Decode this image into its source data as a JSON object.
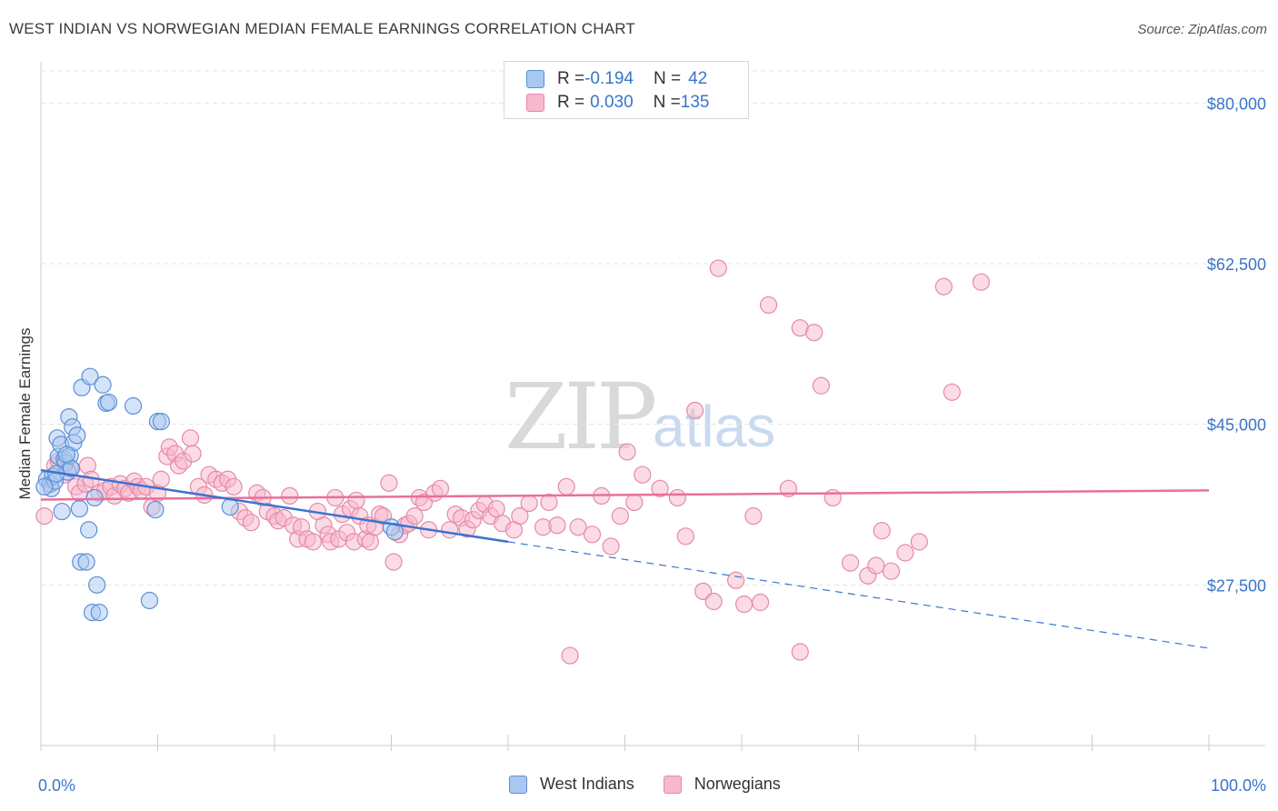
{
  "title": "WEST INDIAN VS NORWEGIAN MEDIAN FEMALE EARNINGS CORRELATION CHART",
  "source": "Source: ZipAtlas.com",
  "watermark": {
    "main": "ZIP",
    "sub": "atlas"
  },
  "colors": {
    "west_indians_fill": "#a9c8f0",
    "west_indians_stroke": "#5b8fd6",
    "west_indians_line": "#3a74d0",
    "norwegians_fill": "#f7b8cc",
    "norwegians_stroke": "#e58aa8",
    "norwegians_line": "#e8709a",
    "axis_label": "#3a74c9",
    "grid": "#e4e4e4"
  },
  "legend": {
    "rows": [
      {
        "r_label": "R = ",
        "r_value": "-0.194",
        "n_label": "N = ",
        "n_value": "42"
      },
      {
        "r_label": "R = ",
        "r_value": "0.030",
        "n_label": "N = ",
        "n_value": "135"
      }
    ]
  },
  "bottom_legend": {
    "west_indians": "West Indians",
    "norwegians": "Norwegians"
  },
  "chart_data": {
    "type": "scatter",
    "xlabel": "",
    "ylabel": "Median Female Earnings",
    "xlim": [
      0,
      100
    ],
    "ylim": [
      10000,
      83500
    ],
    "x_tick_labels": {
      "left": "0.0%",
      "right": "100.0%"
    },
    "y_ticks": [
      {
        "value": 80000,
        "label": "$80,000"
      },
      {
        "value": 62500,
        "label": "$62,500"
      },
      {
        "value": 45000,
        "label": "$45,000"
      },
      {
        "value": 27500,
        "label": "$27,500"
      }
    ],
    "series": [
      {
        "name": "West Indians",
        "trend": {
          "x0": 0,
          "y0": 40000,
          "x1": 40,
          "y1": 32200,
          "dash_to_x": 100,
          "dash_to_y": 20600
        },
        "points": [
          [
            0.5,
            39000
          ],
          [
            0.8,
            38500
          ],
          [
            0.9,
            38000
          ],
          [
            1.0,
            39300
          ],
          [
            1.2,
            38800
          ],
          [
            1.4,
            43500
          ],
          [
            1.5,
            41500
          ],
          [
            1.7,
            42800
          ],
          [
            1.8,
            35500
          ],
          [
            2.0,
            41200
          ],
          [
            2.1,
            40800
          ],
          [
            2.3,
            39800
          ],
          [
            2.5,
            41600
          ],
          [
            2.6,
            40200
          ],
          [
            2.4,
            45800
          ],
          [
            2.7,
            44700
          ],
          [
            2.8,
            43000
          ],
          [
            3.1,
            43800
          ],
          [
            3.3,
            35800
          ],
          [
            3.4,
            30000
          ],
          [
            3.5,
            49000
          ],
          [
            3.9,
            30000
          ],
          [
            4.2,
            50200
          ],
          [
            4.1,
            33500
          ],
          [
            4.4,
            24500
          ],
          [
            4.6,
            37000
          ],
          [
            4.8,
            27500
          ],
          [
            5.0,
            24500
          ],
          [
            5.3,
            49300
          ],
          [
            5.6,
            47300
          ],
          [
            5.8,
            47400
          ],
          [
            7.9,
            47000
          ],
          [
            9.3,
            25800
          ],
          [
            9.8,
            35700
          ],
          [
            10.0,
            45300
          ],
          [
            10.3,
            45300
          ],
          [
            16.2,
            36000
          ],
          [
            30.0,
            33800
          ],
          [
            30.3,
            33300
          ],
          [
            0.3,
            38200
          ],
          [
            1.3,
            39600
          ],
          [
            2.2,
            41700
          ]
        ]
      },
      {
        "name": "Norwegians",
        "trend": {
          "x0": 0,
          "y0": 36800,
          "x1": 100,
          "y1": 37800
        },
        "points": [
          [
            0.3,
            35000
          ],
          [
            1.2,
            40500
          ],
          [
            1.5,
            41000
          ],
          [
            2.0,
            39500
          ],
          [
            2.5,
            40200
          ],
          [
            3.0,
            38200
          ],
          [
            3.3,
            37500
          ],
          [
            3.8,
            38500
          ],
          [
            4.0,
            40500
          ],
          [
            4.3,
            39000
          ],
          [
            5.0,
            37500
          ],
          [
            5.5,
            37800
          ],
          [
            6.0,
            38200
          ],
          [
            6.3,
            37200
          ],
          [
            6.8,
            38500
          ],
          [
            7.2,
            38000
          ],
          [
            7.5,
            37500
          ],
          [
            8.0,
            38800
          ],
          [
            8.3,
            38200
          ],
          [
            8.6,
            37800
          ],
          [
            9.0,
            38200
          ],
          [
            9.5,
            36000
          ],
          [
            10.0,
            37500
          ],
          [
            10.3,
            39000
          ],
          [
            10.8,
            41500
          ],
          [
            11.0,
            42500
          ],
          [
            11.5,
            41800
          ],
          [
            11.8,
            40500
          ],
          [
            12.2,
            41000
          ],
          [
            12.8,
            43500
          ],
          [
            13.0,
            41800
          ],
          [
            13.5,
            38200
          ],
          [
            14.0,
            37300
          ],
          [
            14.4,
            39500
          ],
          [
            15.0,
            39000
          ],
          [
            15.5,
            38600
          ],
          [
            16.0,
            39000
          ],
          [
            16.5,
            38200
          ],
          [
            17.0,
            35500
          ],
          [
            17.5,
            34800
          ],
          [
            18.0,
            34300
          ],
          [
            18.5,
            37500
          ],
          [
            19.0,
            37000
          ],
          [
            19.4,
            35500
          ],
          [
            20.0,
            35000
          ],
          [
            20.3,
            34500
          ],
          [
            20.8,
            34800
          ],
          [
            21.3,
            37200
          ],
          [
            21.6,
            34000
          ],
          [
            22.0,
            32500
          ],
          [
            22.3,
            33800
          ],
          [
            22.8,
            32500
          ],
          [
            23.3,
            32200
          ],
          [
            23.7,
            35500
          ],
          [
            24.2,
            34000
          ],
          [
            24.6,
            33000
          ],
          [
            24.8,
            32200
          ],
          [
            25.2,
            37000
          ],
          [
            25.5,
            32500
          ],
          [
            25.8,
            35200
          ],
          [
            26.2,
            33200
          ],
          [
            26.5,
            35800
          ],
          [
            26.8,
            32200
          ],
          [
            27.0,
            36700
          ],
          [
            27.3,
            35000
          ],
          [
            27.8,
            32500
          ],
          [
            28.0,
            34000
          ],
          [
            28.2,
            32200
          ],
          [
            28.6,
            33800
          ],
          [
            29.0,
            35200
          ],
          [
            29.3,
            35000
          ],
          [
            29.8,
            38600
          ],
          [
            30.2,
            30000
          ],
          [
            30.7,
            33000
          ],
          [
            31.2,
            34000
          ],
          [
            31.5,
            34200
          ],
          [
            32.0,
            35000
          ],
          [
            32.4,
            37000
          ],
          [
            32.8,
            36500
          ],
          [
            33.2,
            33500
          ],
          [
            33.7,
            37500
          ],
          [
            34.2,
            38000
          ],
          [
            35.0,
            33500
          ],
          [
            35.5,
            35200
          ],
          [
            36.0,
            34800
          ],
          [
            36.5,
            33600
          ],
          [
            37.0,
            34600
          ],
          [
            37.5,
            35600
          ],
          [
            38.0,
            36300
          ],
          [
            38.5,
            35000
          ],
          [
            39.0,
            35800
          ],
          [
            39.5,
            34200
          ],
          [
            40.5,
            33500
          ],
          [
            41.0,
            35000
          ],
          [
            41.8,
            36400
          ],
          [
            43.0,
            33800
          ],
          [
            43.5,
            36500
          ],
          [
            44.2,
            34000
          ],
          [
            45.0,
            38200
          ],
          [
            46.0,
            33800
          ],
          [
            47.2,
            33000
          ],
          [
            48.0,
            37200
          ],
          [
            48.8,
            31700
          ],
          [
            49.6,
            35000
          ],
          [
            50.2,
            42000
          ],
          [
            50.8,
            36500
          ],
          [
            51.5,
            39500
          ],
          [
            53.0,
            38000
          ],
          [
            54.5,
            37000
          ],
          [
            55.2,
            32800
          ],
          [
            56.0,
            46500
          ],
          [
            56.7,
            26800
          ],
          [
            57.6,
            25700
          ],
          [
            58.0,
            62000
          ],
          [
            59.5,
            28000
          ],
          [
            60.2,
            25400
          ],
          [
            61.0,
            35000
          ],
          [
            61.6,
            25600
          ],
          [
            62.3,
            58000
          ],
          [
            64.0,
            38000
          ],
          [
            65.0,
            55500
          ],
          [
            66.2,
            55000
          ],
          [
            66.8,
            49200
          ],
          [
            67.8,
            37000
          ],
          [
            69.3,
            29900
          ],
          [
            70.8,
            28500
          ],
          [
            71.5,
            29600
          ],
          [
            72.0,
            33400
          ],
          [
            72.8,
            29000
          ],
          [
            74.0,
            31000
          ],
          [
            75.2,
            32200
          ],
          [
            77.3,
            60000
          ],
          [
            78.0,
            48500
          ],
          [
            80.5,
            60500
          ],
          [
            45.3,
            19800
          ],
          [
            65.0,
            20200
          ]
        ]
      }
    ]
  }
}
